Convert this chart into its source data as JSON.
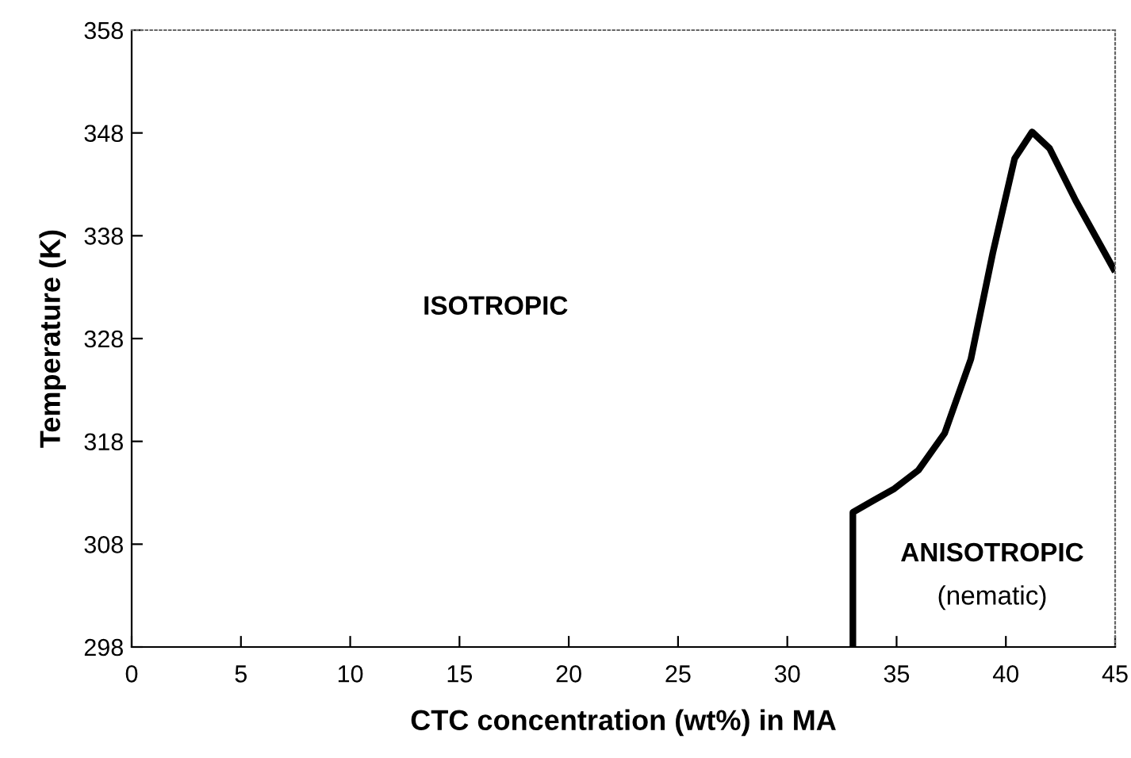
{
  "chart_data": {
    "type": "line",
    "xlabel": "CTC concentration (wt%) in MA",
    "ylabel": "Temperature (K)",
    "x": [
      33,
      33,
      33.9,
      34.9,
      36.0,
      37.2,
      38.4,
      39.4,
      40.4,
      41.2,
      42.0,
      43.2,
      45
    ],
    "series": [
      {
        "color": "#000000",
        "values": [
          298,
          311.1,
          312.2,
          313.4,
          315.2,
          318.8,
          326.0,
          336.3,
          345.5,
          348.1,
          346.5,
          341.4,
          334.5
        ]
      }
    ],
    "xlim": [
      0,
      45
    ],
    "xticks": [
      0,
      5,
      10,
      15,
      20,
      25,
      30,
      35,
      40,
      45
    ],
    "ylim": [
      298,
      358
    ],
    "yticks": [
      298,
      308,
      318,
      328,
      338,
      348,
      358
    ],
    "grid": false,
    "marker": "none",
    "line_style": "solid",
    "annotations": [
      "ISOTROPIC",
      "ANISOTROPIC",
      "(nematic)"
    ]
  }
}
